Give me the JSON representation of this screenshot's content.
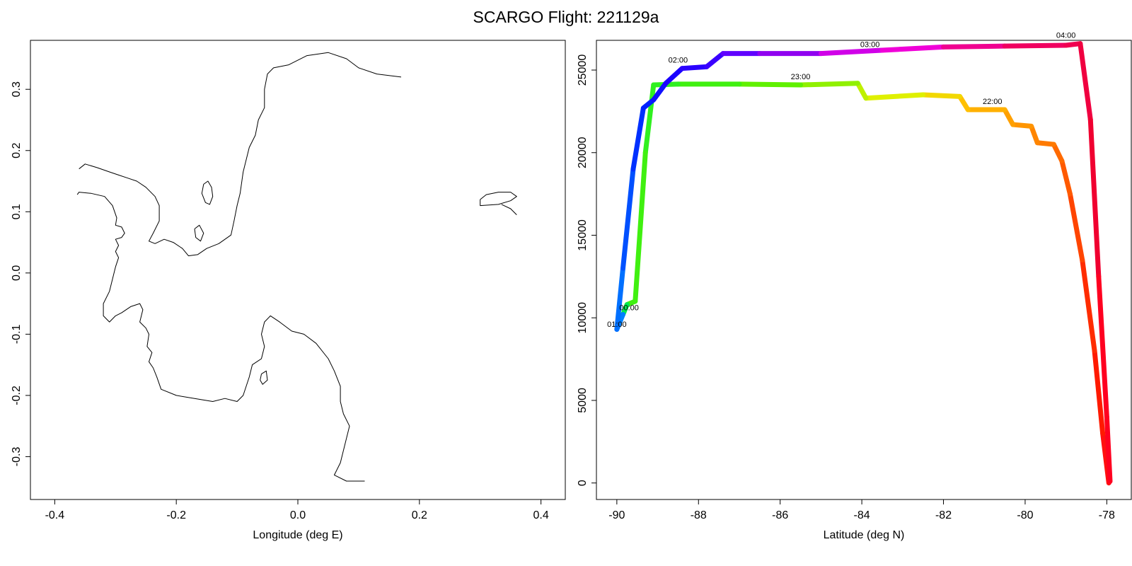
{
  "title": "SCARGO Flight: 221129a",
  "colors": {
    "axis": "#000000",
    "coast": "#000000"
  },
  "chart_data": [
    {
      "type": "map",
      "panel": "left",
      "xlabel": "Longitude (deg E)",
      "ylabel": "",
      "xlim": [
        -0.44,
        0.44
      ],
      "ylim": [
        -0.37,
        0.38
      ],
      "xticks": [
        -0.4,
        -0.2,
        0.0,
        0.2,
        0.4
      ],
      "xtick_labels": [
        "-0.4",
        "-0.2",
        "0.0",
        "0.2",
        "0.4"
      ],
      "yticks": [
        -0.3,
        -0.2,
        -0.1,
        0.0,
        0.1,
        0.2,
        0.3
      ],
      "ytick_labels": [
        "-0.3",
        "-0.2",
        "-0.1",
        "0.0",
        "0.1",
        "0.2",
        "0.3"
      ],
      "grid": false,
      "coastlines": [
        [
          [
            -0.363,
            0.128
          ],
          [
            -0.36,
            0.132
          ],
          [
            -0.34,
            0.13
          ],
          [
            -0.318,
            0.125
          ],
          [
            -0.305,
            0.11
          ],
          [
            -0.298,
            0.09
          ],
          [
            -0.3,
            0.078
          ],
          [
            -0.29,
            0.075
          ],
          [
            -0.285,
            0.065
          ],
          [
            -0.29,
            0.058
          ],
          [
            -0.3,
            0.055
          ],
          [
            -0.295,
            0.045
          ],
          [
            -0.3,
            0.035
          ],
          [
            -0.295,
            0.025
          ],
          [
            -0.3,
            0.01
          ],
          [
            -0.305,
            -0.01
          ],
          [
            -0.31,
            -0.03
          ],
          [
            -0.32,
            -0.05
          ],
          [
            -0.32,
            -0.07
          ],
          [
            -0.31,
            -0.08
          ],
          [
            -0.3,
            -0.07
          ],
          [
            -0.29,
            -0.065
          ],
          [
            -0.275,
            -0.055
          ],
          [
            -0.26,
            -0.05
          ],
          [
            -0.255,
            -0.06
          ],
          [
            -0.26,
            -0.08
          ],
          [
            -0.25,
            -0.09
          ],
          [
            -0.245,
            -0.1
          ],
          [
            -0.248,
            -0.12
          ],
          [
            -0.24,
            -0.13
          ],
          [
            -0.245,
            -0.145
          ],
          [
            -0.238,
            -0.155
          ],
          [
            -0.232,
            -0.17
          ],
          [
            -0.225,
            -0.19
          ],
          [
            -0.2,
            -0.2
          ],
          [
            -0.17,
            -0.205
          ],
          [
            -0.14,
            -0.21
          ],
          [
            -0.12,
            -0.205
          ],
          [
            -0.1,
            -0.21
          ],
          [
            -0.09,
            -0.2
          ],
          [
            -0.085,
            -0.185
          ],
          [
            -0.08,
            -0.17
          ],
          [
            -0.075,
            -0.15
          ],
          [
            -0.06,
            -0.14
          ],
          [
            -0.055,
            -0.12
          ],
          [
            -0.06,
            -0.1
          ],
          [
            -0.055,
            -0.08
          ],
          [
            -0.045,
            -0.07
          ],
          [
            -0.03,
            -0.08
          ],
          [
            -0.01,
            -0.095
          ],
          [
            0.01,
            -0.1
          ],
          [
            0.03,
            -0.115
          ],
          [
            0.05,
            -0.14
          ],
          [
            0.06,
            -0.16
          ],
          [
            0.07,
            -0.185
          ],
          [
            0.07,
            -0.21
          ],
          [
            0.075,
            -0.23
          ],
          [
            0.085,
            -0.25
          ],
          [
            0.08,
            -0.27
          ],
          [
            0.075,
            -0.29
          ],
          [
            0.07,
            -0.31
          ],
          [
            0.06,
            -0.33
          ],
          [
            0.08,
            -0.34
          ],
          [
            0.11,
            -0.34
          ]
        ],
        [
          [
            -0.36,
            0.17
          ],
          [
            -0.35,
            0.178
          ],
          [
            -0.33,
            0.172
          ],
          [
            -0.31,
            0.165
          ],
          [
            -0.295,
            0.16
          ],
          [
            -0.28,
            0.155
          ],
          [
            -0.265,
            0.15
          ],
          [
            -0.25,
            0.14
          ],
          [
            -0.235,
            0.125
          ],
          [
            -0.228,
            0.11
          ],
          [
            -0.228,
            0.085
          ],
          [
            -0.238,
            0.065
          ],
          [
            -0.245,
            0.052
          ],
          [
            -0.235,
            0.048
          ],
          [
            -0.22,
            0.055
          ],
          [
            -0.205,
            0.05
          ],
          [
            -0.19,
            0.04
          ],
          [
            -0.18,
            0.028
          ],
          [
            -0.165,
            0.03
          ],
          [
            -0.15,
            0.04
          ],
          [
            -0.13,
            0.048
          ],
          [
            -0.11,
            0.062
          ],
          [
            -0.105,
            0.085
          ],
          [
            -0.1,
            0.11
          ],
          [
            -0.095,
            0.13
          ],
          [
            -0.09,
            0.165
          ],
          [
            -0.085,
            0.185
          ],
          [
            -0.08,
            0.205
          ],
          [
            -0.07,
            0.225
          ],
          [
            -0.065,
            0.25
          ],
          [
            -0.055,
            0.27
          ],
          [
            -0.055,
            0.3
          ],
          [
            -0.05,
            0.325
          ],
          [
            -0.04,
            0.335
          ],
          [
            -0.015,
            0.34
          ],
          [
            0.015,
            0.355
          ],
          [
            0.05,
            0.36
          ],
          [
            0.08,
            0.35
          ],
          [
            0.1,
            0.335
          ],
          [
            0.13,
            0.325
          ],
          [
            0.17,
            0.32
          ]
        ],
        [
          [
            0.3,
            0.12
          ],
          [
            0.31,
            0.128
          ],
          [
            0.33,
            0.132
          ],
          [
            0.35,
            0.132
          ],
          [
            0.36,
            0.125
          ],
          [
            0.35,
            0.118
          ],
          [
            0.33,
            0.112
          ],
          [
            0.3,
            0.11
          ],
          [
            0.3,
            0.12
          ]
        ],
        [
          [
            0.335,
            0.112
          ],
          [
            0.35,
            0.105
          ],
          [
            0.36,
            0.095
          ]
        ],
        [
          [
            -0.155,
            0.145
          ],
          [
            -0.148,
            0.15
          ],
          [
            -0.142,
            0.14
          ],
          [
            -0.14,
            0.125
          ],
          [
            -0.145,
            0.112
          ],
          [
            -0.152,
            0.115
          ],
          [
            -0.158,
            0.13
          ],
          [
            -0.155,
            0.145
          ]
        ],
        [
          [
            -0.17,
            0.072
          ],
          [
            -0.162,
            0.078
          ],
          [
            -0.155,
            0.065
          ],
          [
            -0.16,
            0.052
          ],
          [
            -0.168,
            0.058
          ],
          [
            -0.17,
            0.072
          ]
        ],
        [
          [
            -0.06,
            -0.165
          ],
          [
            -0.052,
            -0.16
          ],
          [
            -0.05,
            -0.175
          ],
          [
            -0.058,
            -0.182
          ],
          [
            -0.062,
            -0.175
          ],
          [
            -0.06,
            -0.165
          ]
        ]
      ]
    },
    {
      "type": "line",
      "panel": "right",
      "xlabel": "Latitude (deg N)",
      "ylabel": "",
      "xlim": [
        -90.5,
        -77.4
      ],
      "ylim": [
        -1000,
        26800
      ],
      "xticks": [
        -90,
        -88,
        -86,
        -84,
        -82,
        -80,
        -78
      ],
      "xtick_labels": [
        "-90",
        "-88",
        "-86",
        "-84",
        "-82",
        "-80",
        "-78"
      ],
      "yticks": [
        0,
        5000,
        10000,
        15000,
        20000,
        25000
      ],
      "ytick_labels": [
        "0",
        "5000",
        "10000",
        "15000",
        "20000",
        "25000"
      ],
      "grid": false,
      "color_scale": "hour-of-day rainbow (red 21:00 → orange 22:00 → green 23:00 → blue 01:00–02:00 → magenta 03:00 → red 04:00)",
      "series": [
        {
          "points": [
            {
              "x": -77.95,
              "y": 0,
              "color": "#ff0020"
            },
            {
              "x": -78.1,
              "y": 3000,
              "color": "#ff1010"
            },
            {
              "x": -78.3,
              "y": 8000,
              "color": "#ff1a00"
            },
            {
              "x": -78.6,
              "y": 13500,
              "color": "#ff2c00"
            },
            {
              "x": -78.9,
              "y": 17500,
              "color": "#ff4500"
            },
            {
              "x": -79.1,
              "y": 19500,
              "color": "#ff5a00"
            },
            {
              "x": -79.3,
              "y": 20500,
              "color": "#ff6a00"
            },
            {
              "x": -79.7,
              "y": 20600,
              "color": "#ff7a00"
            },
            {
              "x": -79.85,
              "y": 21600,
              "color": "#ff8500"
            },
            {
              "x": -80.3,
              "y": 21700,
              "color": "#ff9500"
            },
            {
              "x": -80.5,
              "y": 22600,
              "color": "#ffa000"
            },
            {
              "x": -81.4,
              "y": 22600,
              "color": "#ffb000"
            },
            {
              "x": -81.6,
              "y": 23400,
              "color": "#ffc000"
            },
            {
              "x": -82.5,
              "y": 23500,
              "color": "#f2d800"
            },
            {
              "x": -83.9,
              "y": 23300,
              "color": "#dff000"
            },
            {
              "x": -84.1,
              "y": 24200,
              "color": "#bff000"
            },
            {
              "x": -85.5,
              "y": 24100,
              "color": "#90f000"
            },
            {
              "x": -87.0,
              "y": 24150,
              "color": "#60f000"
            },
            {
              "x": -88.5,
              "y": 24150,
              "color": "#40f010"
            },
            {
              "x": -89.1,
              "y": 24100,
              "color": "#30f020"
            },
            {
              "x": -89.3,
              "y": 20000,
              "color": "#30f020"
            },
            {
              "x": -89.55,
              "y": 11000,
              "color": "#40f010"
            },
            {
              "x": -89.75,
              "y": 10800,
              "color": "#40f010"
            },
            {
              "x": -89.85,
              "y": 10200,
              "color": "#00e850"
            },
            {
              "x": -90.0,
              "y": 9300,
              "color": "#0080ff"
            },
            {
              "x": -89.85,
              "y": 13000,
              "color": "#0070ff"
            },
            {
              "x": -89.6,
              "y": 19000,
              "color": "#0050ff"
            },
            {
              "x": -89.35,
              "y": 22700,
              "color": "#0030ff"
            },
            {
              "x": -89.1,
              "y": 23200,
              "color": "#0020ff"
            },
            {
              "x": -88.8,
              "y": 24200,
              "color": "#1010ff"
            },
            {
              "x": -88.4,
              "y": 25100,
              "color": "#1a00ff"
            },
            {
              "x": -87.8,
              "y": 25200,
              "color": "#2a00ff"
            },
            {
              "x": -87.4,
              "y": 26000,
              "color": "#3a00ff"
            },
            {
              "x": -86.5,
              "y": 26000,
              "color": "#6000ff"
            },
            {
              "x": -85.0,
              "y": 26000,
              "color": "#9000f0"
            },
            {
              "x": -83.5,
              "y": 26200,
              "color": "#d000e8"
            },
            {
              "x": -82.0,
              "y": 26400,
              "color": "#f000d8"
            },
            {
              "x": -80.5,
              "y": 26450,
              "color": "#f00090"
            },
            {
              "x": -79.0,
              "y": 26500,
              "color": "#f00060"
            },
            {
              "x": -78.65,
              "y": 26600,
              "color": "#f00050"
            },
            {
              "x": -78.4,
              "y": 22000,
              "color": "#f00040"
            },
            {
              "x": -78.2,
              "y": 12500,
              "color": "#f00030"
            },
            {
              "x": -78.0,
              "y": 4000,
              "color": "#ff0020"
            },
            {
              "x": -77.92,
              "y": 100,
              "color": "#ff0020"
            }
          ]
        }
      ],
      "annotations": [
        {
          "text": "22:00",
          "x": -80.8,
          "y": 22950
        },
        {
          "text": "23:00",
          "x": -85.5,
          "y": 24450
        },
        {
          "text": "00:00",
          "x": -89.7,
          "y": 10450
        },
        {
          "text": "01:00",
          "x": -90.0,
          "y": 9450
        },
        {
          "text": "02:00",
          "x": -88.5,
          "y": 25450
        },
        {
          "text": "03:00",
          "x": -83.8,
          "y": 26400
        },
        {
          "text": "04:00",
          "x": -79.0,
          "y": 26950
        }
      ]
    }
  ]
}
